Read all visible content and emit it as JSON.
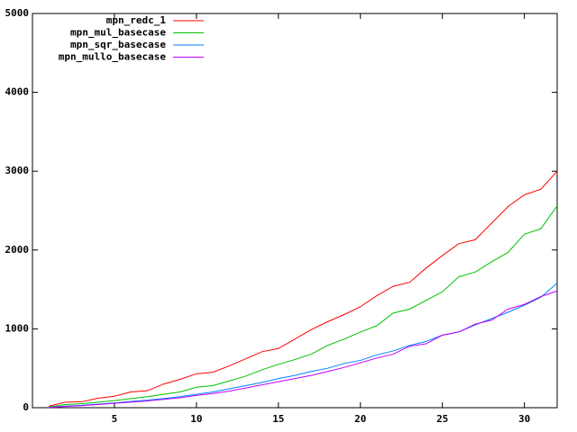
{
  "chart_data": {
    "type": "line",
    "x": [
      1,
      2,
      3,
      4,
      5,
      6,
      7,
      8,
      9,
      10,
      11,
      12,
      13,
      14,
      15,
      16,
      17,
      18,
      19,
      20,
      21,
      22,
      23,
      24,
      25,
      26,
      27,
      28,
      29,
      30,
      31,
      32
    ],
    "xlim": [
      0,
      32
    ],
    "xticks": [
      5,
      10,
      15,
      20,
      25,
      30
    ],
    "ylim": [
      0,
      5000
    ],
    "yticks": [
      0,
      1000,
      2000,
      3000,
      4000,
      5000
    ],
    "legend": "top-left",
    "series": [
      {
        "name": "mpn_redc_1",
        "color": "#ff0000",
        "values": [
          20,
          70,
          75,
          120,
          145,
          200,
          215,
          300,
          360,
          430,
          450,
          530,
          620,
          710,
          750,
          870,
          990,
          1090,
          1180,
          1280,
          1420,
          1540,
          1590,
          1770,
          1930,
          2080,
          2130,
          2340,
          2550,
          2700,
          2770,
          3000
        ]
      },
      {
        "name": "mpn_mul_basecase",
        "color": "#00c000",
        "values": [
          10,
          40,
          50,
          70,
          90,
          115,
          140,
          170,
          200,
          260,
          280,
          340,
          400,
          480,
          550,
          610,
          680,
          790,
          870,
          960,
          1040,
          1200,
          1250,
          1360,
          1470,
          1660,
          1720,
          1850,
          1970,
          2200,
          2270,
          2560
        ]
      },
      {
        "name": "mpn_sqr_basecase",
        "color": "#0080ff",
        "values": [
          5,
          20,
          30,
          45,
          60,
          80,
          95,
          115,
          140,
          170,
          200,
          240,
          280,
          320,
          370,
          410,
          460,
          500,
          560,
          600,
          670,
          720,
          790,
          840,
          920,
          960,
          1050,
          1130,
          1210,
          1300,
          1400,
          1580
        ]
      },
      {
        "name": "mpn_mullo_basecase",
        "color": "#c000ff",
        "values": [
          3,
          15,
          25,
          40,
          55,
          70,
          85,
          105,
          125,
          155,
          180,
          210,
          250,
          290,
          330,
          370,
          410,
          460,
          510,
          570,
          630,
          680,
          780,
          810,
          920,
          960,
          1060,
          1110,
          1250,
          1310,
          1410,
          1480
        ]
      }
    ]
  }
}
